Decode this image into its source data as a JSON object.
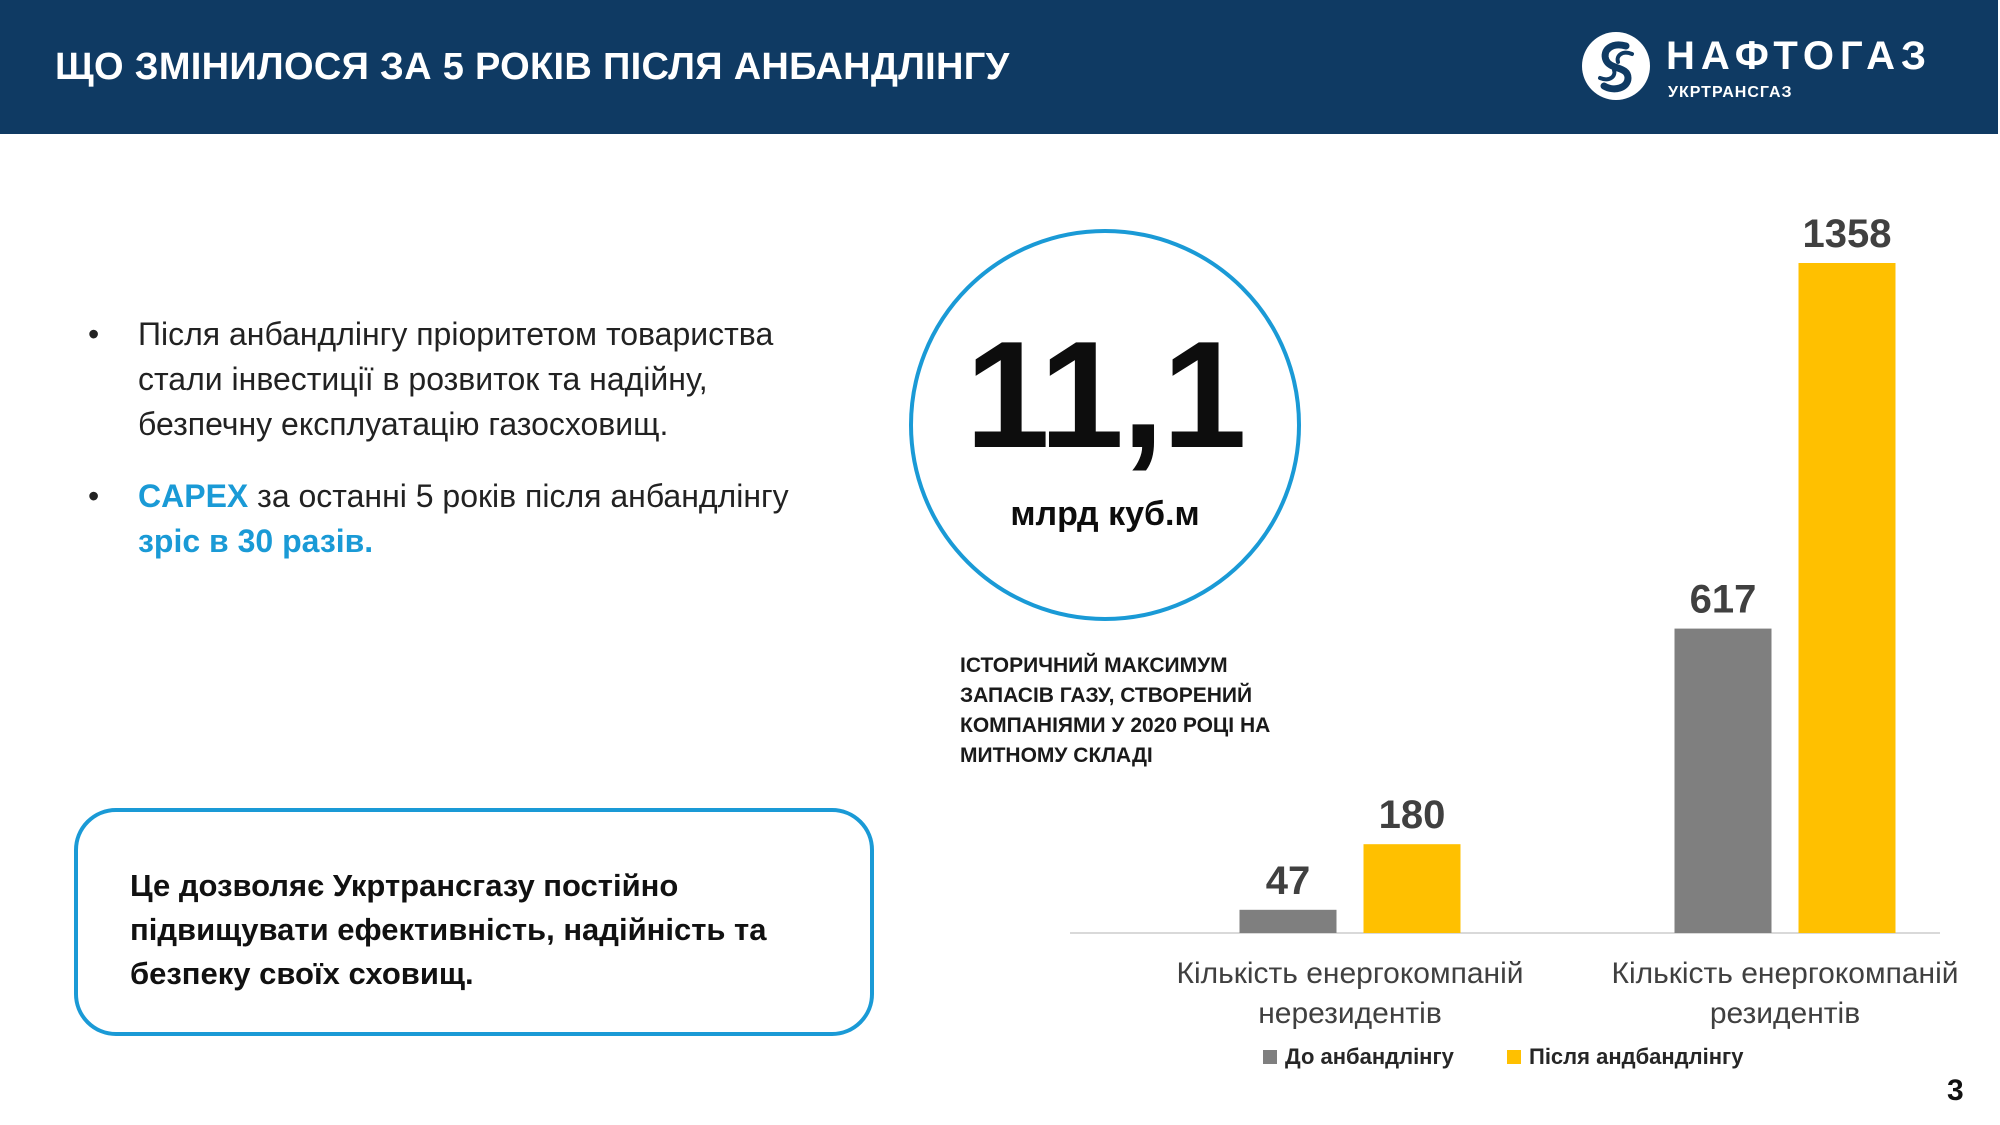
{
  "header": {
    "title": "ЩО ЗМІНИЛОСЯ ЗА 5 РОКІВ ПІСЛЯ АНБАНДЛІНГУ",
    "logo_name": "НАФТОГАЗ",
    "logo_sub": "УКРТРАНСГАЗ",
    "background": "#0f3a63"
  },
  "bullets": {
    "bullet_char": "•",
    "item1": "Після анбандлінгу пріоритетом товариства стали інвестиції в розвиток та  надійну, безпечну експлуатацію газосховищ.",
    "item2_highlight": "CAPEX",
    "item2_mid": " за останні 5 років після анбандлінгу ",
    "item2_highlight2": "зріс в 30 разів",
    "item2_end": "."
  },
  "note": {
    "text": "Це дозволяє Укртрансгазу постійно підвищувати ефективність, надійність та безпеку своїх сховищ."
  },
  "stat": {
    "value": "11,1",
    "unit": "млрд куб.м",
    "caption": "ІСТОРИЧНИЙ МАКСИМУМ ЗАПАСІВ ГАЗУ, СТВОРЕНИЙ КОМПАНІЯМИ У 2020 РОЦІ НА МИТНОМУ СКЛАДІ"
  },
  "chart_data": {
    "type": "bar",
    "categories": [
      "Кількість енергокомпаній нерезидентів",
      "Кількість енергокомпаній резидентів"
    ],
    "category_lines": [
      [
        "Кількість енергокомпаній",
        "нерезидентів"
      ],
      [
        "Кількість енергокомпаній",
        "резидентів"
      ]
    ],
    "series": [
      {
        "name": "До анбандлінгу",
        "values": [
          47,
          617
        ],
        "color": "#7f7f7f"
      },
      {
        "name": "Після андбандлінгу",
        "values": [
          180,
          1358
        ],
        "color": "#ffc000"
      }
    ],
    "ylim": [
      0,
      1358
    ],
    "grid": false,
    "legend": "bottom",
    "data_labels": true
  },
  "accent": "#1a9ad6",
  "page_number": "3"
}
